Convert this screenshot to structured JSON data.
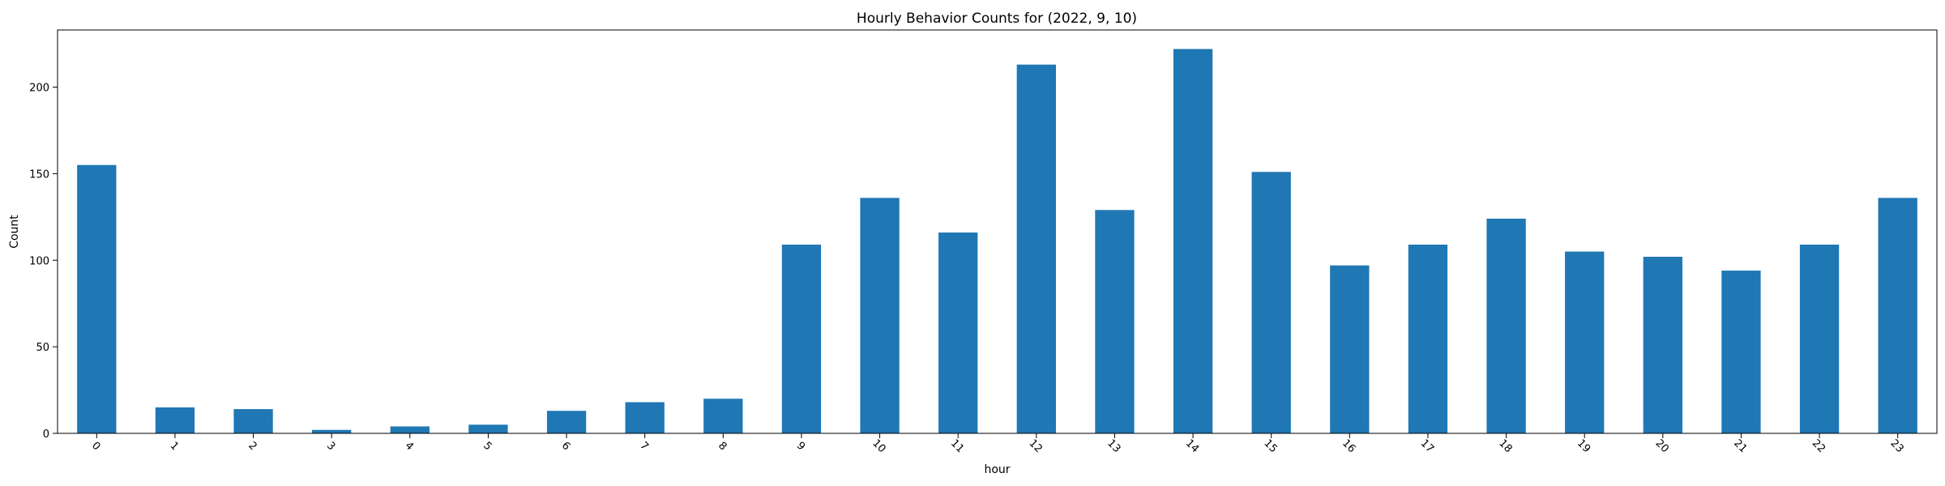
{
  "chart_data": {
    "type": "bar",
    "title": "Hourly Behavior Counts for (2022, 9, 10)",
    "xlabel": "hour",
    "ylabel": "Count",
    "categories": [
      "0",
      "1",
      "2",
      "3",
      "4",
      "5",
      "6",
      "7",
      "8",
      "9",
      "10",
      "11",
      "12",
      "13",
      "14",
      "15",
      "16",
      "17",
      "18",
      "19",
      "20",
      "21",
      "22",
      "23"
    ],
    "values": [
      155,
      15,
      14,
      2,
      4,
      5,
      13,
      18,
      20,
      109,
      136,
      116,
      213,
      129,
      222,
      151,
      97,
      109,
      124,
      105,
      102,
      94,
      109,
      136
    ],
    "ylim": [
      0,
      233
    ],
    "yticks": [
      0,
      50,
      100,
      150,
      200
    ],
    "grid": false,
    "legend": "none",
    "bar_color": "#1f77b4",
    "x_tick_rotation": 45
  }
}
